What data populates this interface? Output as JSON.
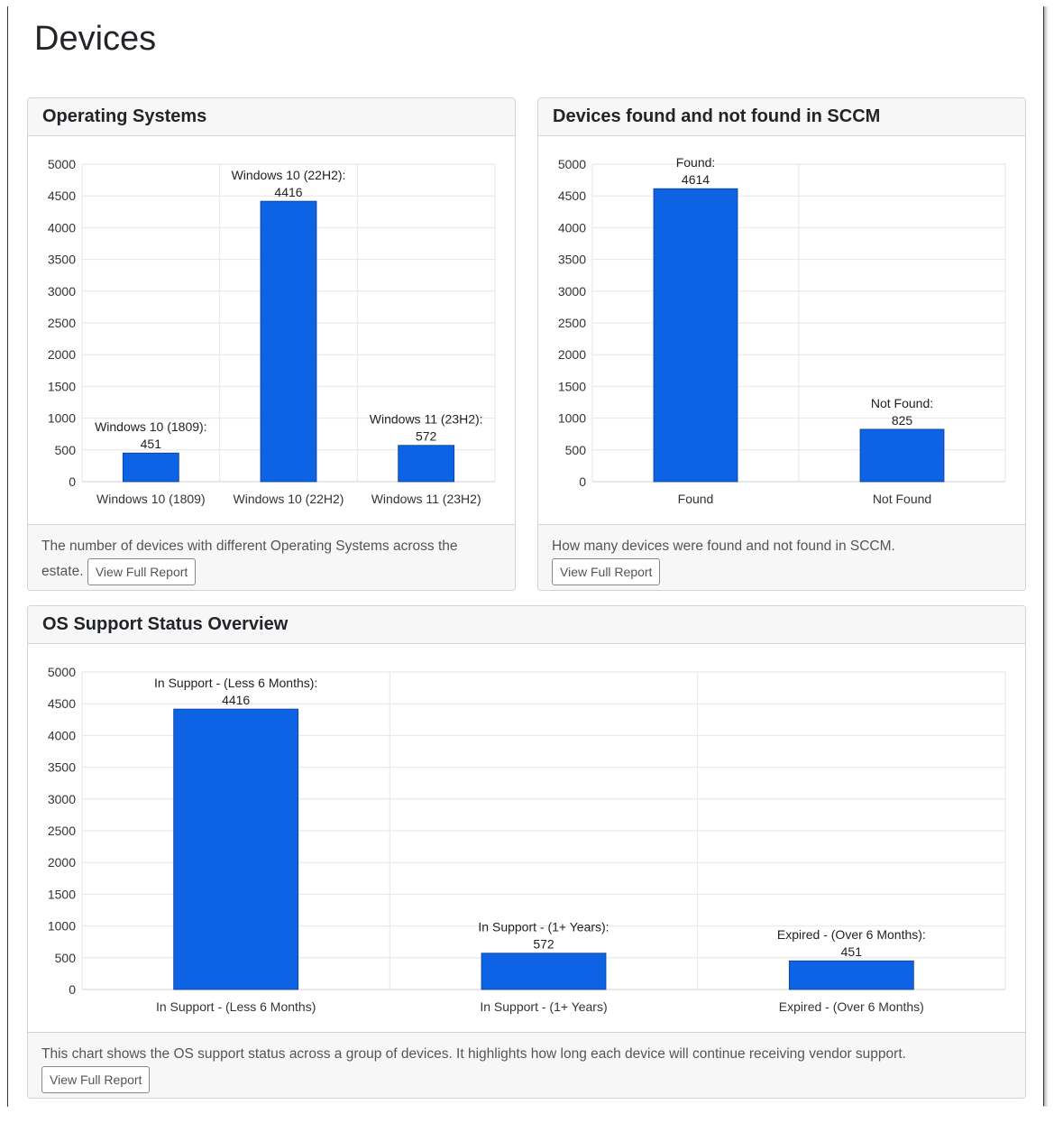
{
  "page": {
    "title": "Devices"
  },
  "colors": {
    "bar": "#0d63e3",
    "grid": "#e6e6e6",
    "axis": "#333333"
  },
  "cards": {
    "os": {
      "title": "Operating Systems",
      "footer_text": "The number of devices with different Operating Systems across the estate.",
      "button_label": "View Full Report"
    },
    "sccm": {
      "title": "Devices found and not found in SCCM",
      "footer_text": "How many devices were found and not found in SCCM.",
      "button_label": "View Full Report"
    },
    "support": {
      "title": "OS Support Status Overview",
      "footer_text": "This chart shows the OS support status across a group of devices. It highlights how long each device will continue receiving vendor support.",
      "button_label": "View Full Report"
    }
  },
  "chart_data": [
    {
      "id": "os",
      "type": "bar",
      "title": "Operating Systems",
      "categories": [
        "Windows 10 (1809)",
        "Windows 10 (22H2)",
        "Windows 11 (23H2)"
      ],
      "values": [
        451,
        4416,
        572
      ],
      "data_labels": [
        "Windows 10 (1809):",
        "Windows 10 (22H2):",
        "Windows 11 (23H2):"
      ],
      "yticks": [
        0,
        500,
        1000,
        1500,
        2000,
        2500,
        3000,
        3500,
        4000,
        4500,
        5000
      ],
      "ylim": [
        0,
        5000
      ],
      "xlabel": "",
      "ylabel": ""
    },
    {
      "id": "sccm",
      "type": "bar",
      "title": "Devices found and not found in SCCM",
      "categories": [
        "Found",
        "Not Found"
      ],
      "values": [
        4614,
        825
      ],
      "data_labels": [
        "Found:",
        "Not Found:"
      ],
      "yticks": [
        0,
        500,
        1000,
        1500,
        2000,
        2500,
        3000,
        3500,
        4000,
        4500,
        5000
      ],
      "ylim": [
        0,
        5000
      ],
      "xlabel": "",
      "ylabel": ""
    },
    {
      "id": "support",
      "type": "bar",
      "title": "OS Support Status Overview",
      "categories": [
        "In Support - (Less 6 Months)",
        "In Support - (1+ Years)",
        "Expired - (Over 6 Months)"
      ],
      "values": [
        4416,
        572,
        451
      ],
      "data_labels": [
        "In Support - (Less 6 Months):",
        "In Support - (1+ Years):",
        "Expired - (Over 6 Months):"
      ],
      "yticks": [
        0,
        500,
        1000,
        1500,
        2000,
        2500,
        3000,
        3500,
        4000,
        4500,
        5000
      ],
      "ylim": [
        0,
        5000
      ],
      "xlabel": "",
      "ylabel": ""
    }
  ]
}
